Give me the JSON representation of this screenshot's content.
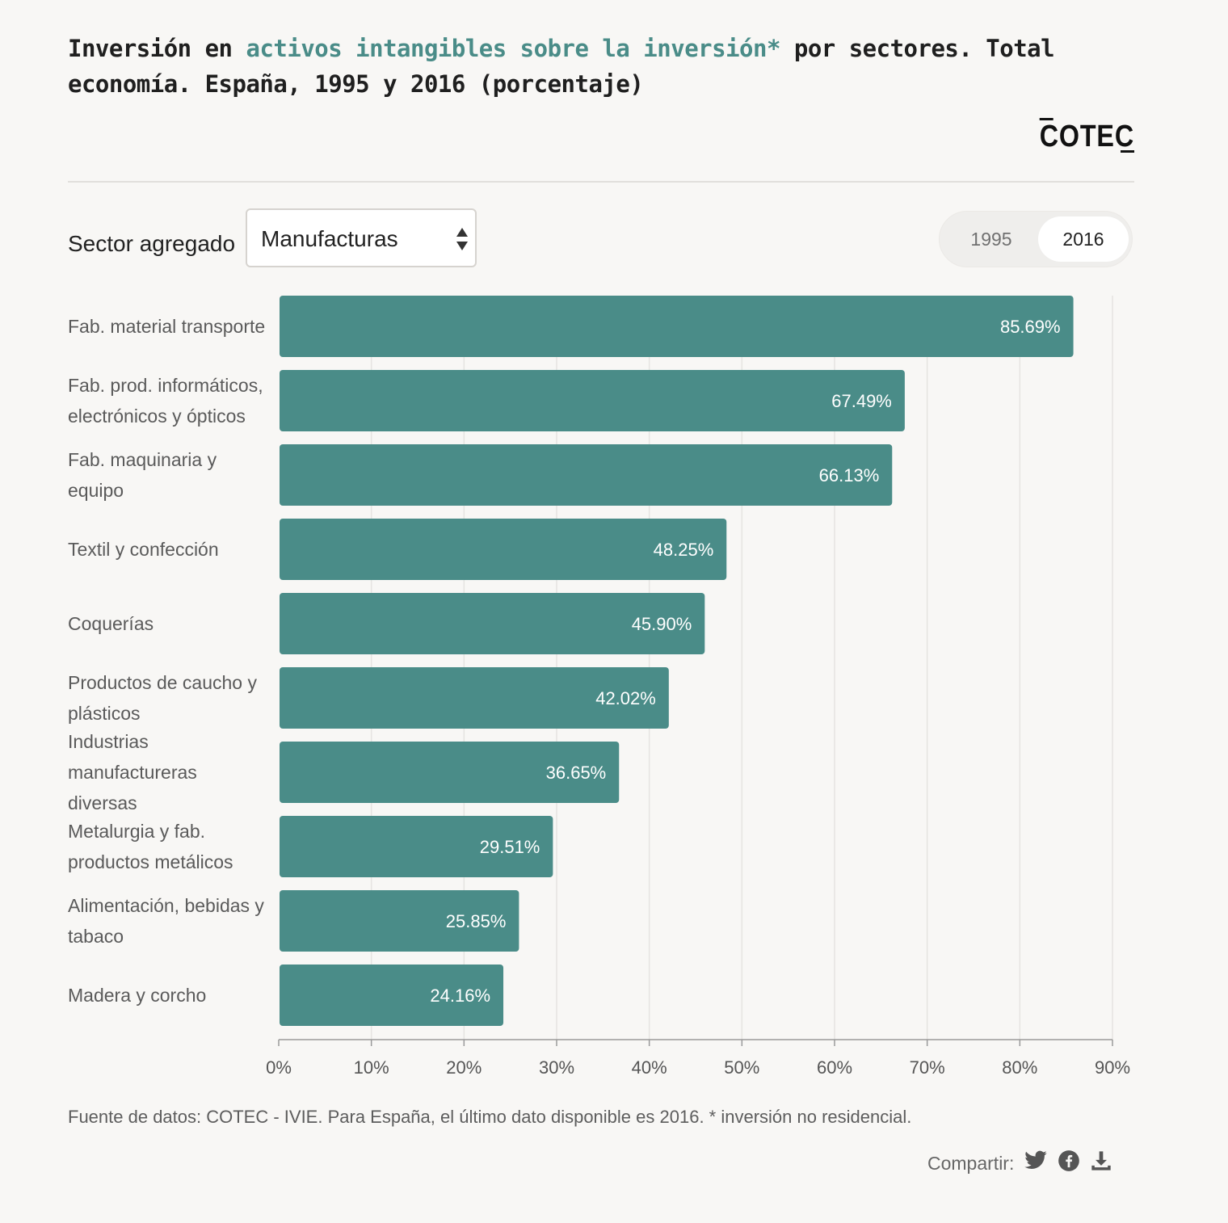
{
  "header": {
    "title_part1": "Inversión en ",
    "title_highlight": "activos intangibles sobre la inversión*",
    "title_part2": " por sectores. Total economía. España, 1995 y 2016 (porcentaje)",
    "logo": "COTEC"
  },
  "controls": {
    "sector_label": "Sector agregado",
    "sector_selected": "Manufacturas",
    "year_options": [
      "1995",
      "2016"
    ],
    "year_selected": "2016"
  },
  "colors": {
    "bar": "#4a8c88",
    "title_highlight": "#4a8c88",
    "background": "#f8f7f5"
  },
  "chart_data": {
    "type": "bar",
    "orientation": "horizontal",
    "categories": [
      "Fab. material transporte",
      "Fab. prod. informáticos, electrónicos y ópticos",
      "Fab. maquinaria y equipo",
      "Textil y confección",
      "Coquerías",
      "Productos de caucho y plásticos",
      "Industrias manufactureras diversas",
      "Metalurgia y fab. productos metálicos",
      "Alimentación, bebidas y tabaco",
      "Madera y corcho"
    ],
    "values": [
      85.69,
      67.49,
      66.13,
      48.25,
      45.9,
      42.02,
      36.65,
      29.51,
      25.85,
      24.16
    ],
    "value_labels": [
      "85.69%",
      "67.49%",
      "66.13%",
      "48.25%",
      "45.90%",
      "42.02%",
      "36.65%",
      "29.51%",
      "25.85%",
      "24.16%"
    ],
    "xlim": [
      0,
      90
    ],
    "x_ticks": [
      0,
      10,
      20,
      30,
      40,
      50,
      60,
      70,
      80,
      90
    ],
    "x_tick_labels": [
      "0%",
      "10%",
      "20%",
      "30%",
      "40%",
      "50%",
      "60%",
      "70%",
      "80%",
      "90%"
    ],
    "grid": true
  },
  "footer": {
    "source": "Fuente de datos: COTEC - IVIE. Para España, el último dato disponible es 2016. * inversión no residencial.",
    "share_label": "Compartir:",
    "share_icons": [
      "twitter-icon",
      "facebook-icon",
      "download-icon"
    ]
  }
}
